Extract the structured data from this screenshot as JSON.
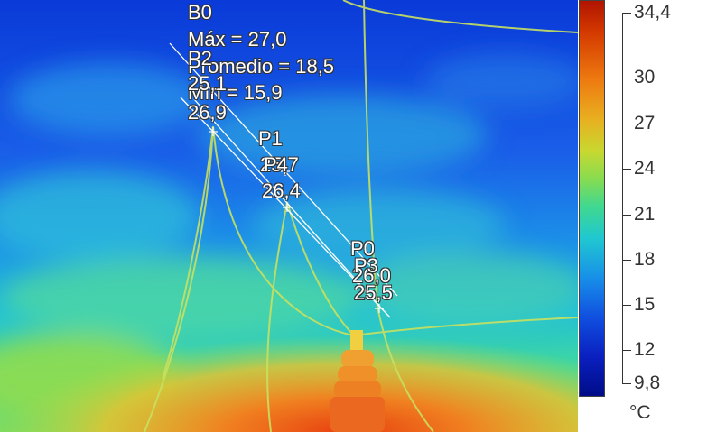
{
  "image": {
    "description_icon": "thermal-camera-image"
  },
  "box": {
    "label": "B0",
    "max": "Máx = 27,0",
    "avg": "Promedio = 18,5",
    "min": "Mín = 15,9"
  },
  "points": [
    {
      "label": "P2",
      "value": "25,1"
    },
    {
      "label": "P4",
      "value": "26,9"
    },
    {
      "label": "P1",
      "value": "25,7"
    },
    {
      "label": "P4",
      "value": "26,4"
    },
    {
      "label": "P0",
      "value": "26,0"
    },
    {
      "label": "P3",
      "value": "25,5"
    }
  ],
  "scale": {
    "ticks": [
      "34,4",
      "30",
      "27",
      "24",
      "21",
      "18",
      "15",
      "12",
      "9,8"
    ],
    "unit": "°C",
    "colors": [
      "#b01400",
      "#ee7a10",
      "#c8d830",
      "#40d890",
      "#1890e8",
      "#0a20c0",
      "#000c88"
    ]
  }
}
